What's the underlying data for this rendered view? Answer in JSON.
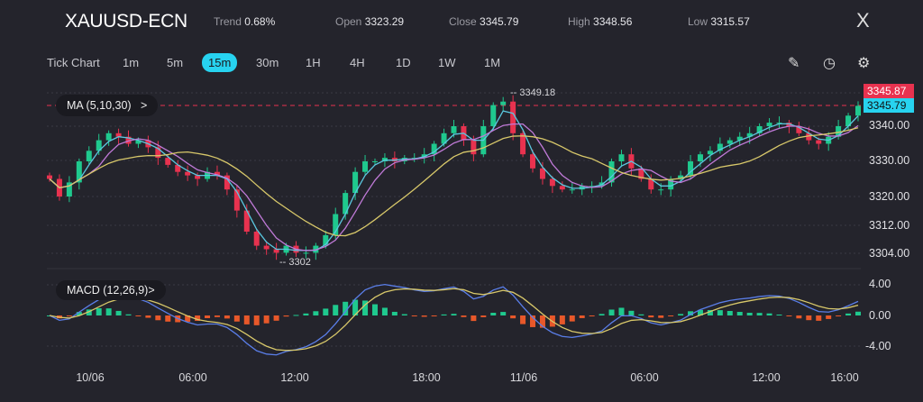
{
  "header": {
    "symbol": "XAUUSD-ECN",
    "trend_label": "Trend",
    "trend": "0.68%",
    "open_label": "Open",
    "open": "3323.29",
    "close_label": "Close",
    "close": "3345.79",
    "high_label": "High",
    "high": "3348.56",
    "low_label": "Low",
    "low": "3315.57",
    "close_icon": "X"
  },
  "timeframes": [
    "Tick Chart",
    "1m",
    "5m",
    "15m",
    "30m",
    "1H",
    "4H",
    "1D",
    "1W",
    "1M"
  ],
  "active_timeframe": "15m",
  "tools": {
    "draw": "pencil-icon",
    "timer": "timer-icon",
    "settings": "settings-icon"
  },
  "indicators": {
    "ma": "MA (5,10,30)",
    "ma_chevron": ">",
    "macd": "MACD (12,26,9)",
    "macd_chevron": ">"
  },
  "price_axis": [
    "3340.00",
    "3330.00",
    "3320.00",
    "3312.00",
    "3304.00"
  ],
  "macd_axis": [
    "4.00",
    "0.00",
    "-4.00"
  ],
  "time_axis": [
    "10/06",
    "06:00",
    "12:00",
    "18:00",
    "11/06",
    "06:00",
    "12:00",
    "16:00"
  ],
  "annotations": {
    "max": "3349.18",
    "min": "3302",
    "ask": "3345.87",
    "bid": "3345.79"
  },
  "colors": {
    "up": "#1fc98e",
    "down": "#e8324f",
    "ma5": "#5bc8e0",
    "ma10": "#c07ad8",
    "ma30": "#d8c86a",
    "macd": "#5a7ee8",
    "signal": "#d8c86a",
    "hist_down": "#e8582a",
    "accent": "#27d3f0"
  },
  "chart_data": {
    "type": "candlestick",
    "closes": [
      3325,
      3320,
      3324,
      3330,
      3333,
      3336,
      3338,
      3337,
      3335,
      3336,
      3334,
      3331,
      3329,
      3327,
      3326,
      3325,
      3327,
      3326,
      3322,
      3316,
      3310,
      3306,
      3305,
      3304,
      3306,
      3304,
      3304,
      3306,
      3309,
      3315,
      3321,
      3327,
      3330,
      3330,
      3331,
      3330,
      3331,
      3331,
      3332,
      3335,
      3338,
      3340,
      3336,
      3332,
      3340,
      3346,
      3347,
      3338,
      3332,
      3328,
      3325,
      3323,
      3322,
      3322,
      3323,
      3323,
      3324,
      3330,
      3332,
      3328,
      3325,
      3322,
      3322,
      3325,
      3326,
      3330,
      3332,
      3333,
      3335,
      3336,
      3337,
      3338,
      3340,
      3341,
      3341,
      3340,
      3338,
      3336,
      3335,
      3337,
      3340,
      3343,
      3345.79
    ]
  }
}
